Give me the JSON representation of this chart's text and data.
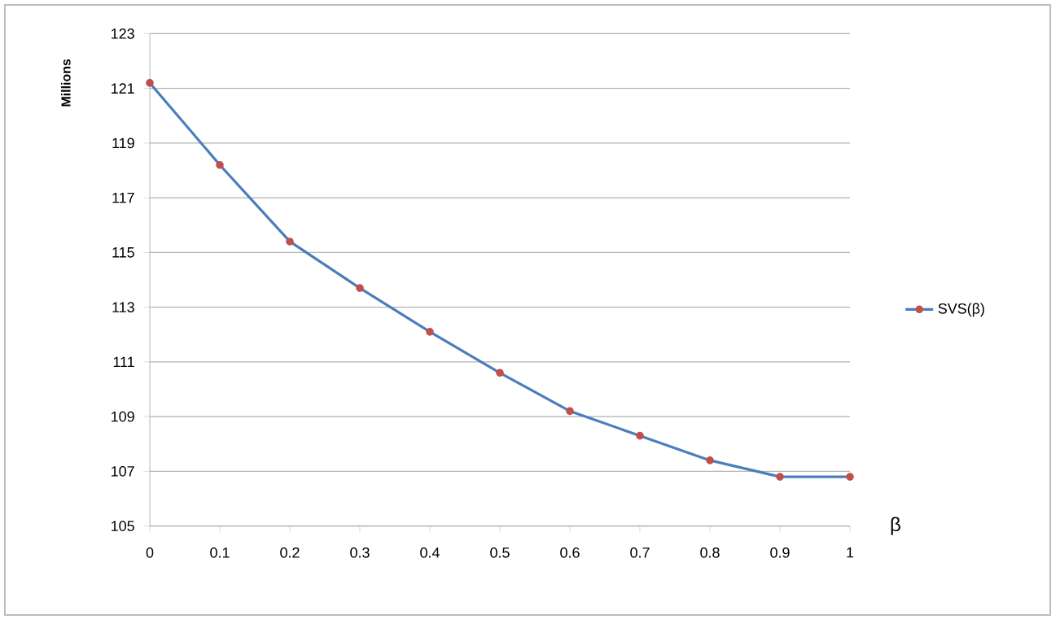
{
  "chart_data": {
    "type": "line",
    "xlabel": "β",
    "ylabel": "Millions",
    "x": [
      0,
      0.1,
      0.2,
      0.3,
      0.4,
      0.5,
      0.6,
      0.7,
      0.8,
      0.9,
      1
    ],
    "series": [
      {
        "name": "SVS(β)",
        "color": "#4a7ebb",
        "colors": [
          "#c0504d",
          "#c0504d",
          "#c0504d",
          "#c0504d",
          "#c0504d",
          "#c0504d",
          "#c0504d",
          "#c0504d",
          "#c0504d",
          "#c0504d",
          "#c0504d"
        ],
        "values": [
          121.2,
          118.2,
          115.4,
          113.7,
          112.1,
          110.6,
          109.2,
          108.3,
          107.4,
          106.8,
          106.8
        ]
      }
    ],
    "xlim": [
      0,
      1
    ],
    "xticks": [
      0,
      0.1,
      0.2,
      0.3,
      0.4,
      0.5,
      0.6,
      0.7,
      0.8,
      0.9,
      1
    ],
    "ylim": [
      105,
      123
    ],
    "yticks": [
      105,
      107,
      109,
      111,
      113,
      115,
      117,
      119,
      121,
      123
    ],
    "grid": "y",
    "legend": "right",
    "marker": "circle",
    "line_style": "solid"
  }
}
